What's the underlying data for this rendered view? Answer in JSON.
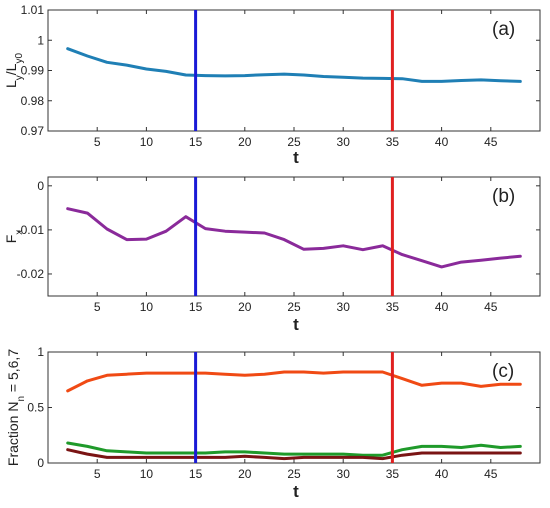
{
  "chart_data": [
    {
      "type": "line",
      "panel_label": "(a)",
      "xlabel": "t",
      "ylabel": {
        "main": "L",
        "sub1": "y",
        "mid": "/L",
        "sub2": "y0"
      },
      "xlim": [
        0,
        50
      ],
      "ylim": [
        0.97,
        1.01
      ],
      "x_ticks": [
        5,
        10,
        15,
        20,
        25,
        30,
        35,
        40,
        45
      ],
      "y_ticks": [
        {
          "value": 0.97,
          "label": "0.97"
        },
        {
          "value": 0.98,
          "label": "0.98"
        },
        {
          "value": 0.99,
          "label": "0.99"
        },
        {
          "value": 1.0,
          "label": "1"
        },
        {
          "value": 1.01,
          "label": "1.01"
        }
      ],
      "vlines": [
        {
          "x": 15,
          "color": "#1a1ad6"
        },
        {
          "x": 35,
          "color": "#e02020"
        }
      ],
      "series": [
        {
          "color": "#1f7fb5",
          "x": [
            2,
            4,
            6,
            8,
            10,
            12,
            14,
            16,
            18,
            20,
            22,
            24,
            26,
            28,
            30,
            32,
            34,
            36,
            38,
            40,
            42,
            44,
            46,
            48
          ],
          "y": [
            0.9972,
            0.9948,
            0.9927,
            0.9918,
            0.9905,
            0.9897,
            0.9885,
            0.9883,
            0.9882,
            0.9883,
            0.9886,
            0.9888,
            0.9885,
            0.988,
            0.9878,
            0.9875,
            0.9874,
            0.9873,
            0.9864,
            0.9864,
            0.9867,
            0.9869,
            0.9866,
            0.9864
          ]
        }
      ]
    },
    {
      "type": "line",
      "panel_label": "(b)",
      "xlabel": "t",
      "ylabel": {
        "main": "F",
        "sub1": "x"
      },
      "xlim": [
        0,
        50
      ],
      "ylim": [
        -0.025,
        0.002
      ],
      "x_ticks": [
        5,
        10,
        15,
        20,
        25,
        30,
        35,
        40,
        45
      ],
      "y_ticks": [
        {
          "value": 0,
          "label": "0"
        },
        {
          "value": -0.01,
          "label": "-0.01"
        },
        {
          "value": -0.02,
          "label": "-0.02"
        }
      ],
      "vlines": [
        {
          "x": 15,
          "color": "#1a1ad6"
        },
        {
          "x": 35,
          "color": "#e02020"
        }
      ],
      "series": [
        {
          "color": "#8a2a9a",
          "x": [
            2,
            4,
            6,
            8,
            10,
            12,
            14,
            16,
            18,
            20,
            22,
            24,
            26,
            28,
            30,
            32,
            34,
            36,
            38,
            40,
            42,
            44,
            46,
            48
          ],
          "y": [
            -0.0052,
            -0.0062,
            -0.0098,
            -0.0122,
            -0.0121,
            -0.0103,
            -0.007,
            -0.0097,
            -0.0103,
            -0.0105,
            -0.0107,
            -0.0122,
            -0.0144,
            -0.0142,
            -0.0136,
            -0.0145,
            -0.0136,
            -0.0156,
            -0.017,
            -0.0184,
            -0.0173,
            -0.0169,
            -0.0164,
            -0.016
          ]
        }
      ]
    },
    {
      "type": "line",
      "panel_label": "(c)",
      "xlabel": "t",
      "ylabel": {
        "main": "Fraction N",
        "sub1": "n",
        "mid": " = 5,6,7"
      },
      "xlim": [
        0,
        50
      ],
      "ylim": [
        0,
        1
      ],
      "x_ticks": [
        5,
        10,
        15,
        20,
        25,
        30,
        35,
        40,
        45
      ],
      "y_ticks": [
        {
          "value": 0,
          "label": "0"
        },
        {
          "value": 0.5,
          "label": "0.5"
        },
        {
          "value": 1,
          "label": "1"
        }
      ],
      "vlines": [
        {
          "x": 15,
          "color": "#1a1ad6"
        },
        {
          "x": 35,
          "color": "#e02020"
        }
      ],
      "series": [
        {
          "color": "#f04a14",
          "x": [
            2,
            4,
            6,
            8,
            10,
            12,
            14,
            16,
            18,
            20,
            22,
            24,
            26,
            28,
            30,
            32,
            34,
            36,
            38,
            40,
            42,
            44,
            46,
            48
          ],
          "y": [
            0.65,
            0.74,
            0.79,
            0.8,
            0.81,
            0.81,
            0.81,
            0.81,
            0.8,
            0.79,
            0.8,
            0.82,
            0.82,
            0.81,
            0.82,
            0.82,
            0.82,
            0.76,
            0.7,
            0.72,
            0.72,
            0.69,
            0.71,
            0.71
          ]
        },
        {
          "color": "#1f9a2a",
          "x": [
            2,
            4,
            6,
            8,
            10,
            12,
            14,
            16,
            18,
            20,
            22,
            24,
            26,
            28,
            30,
            32,
            34,
            36,
            38,
            40,
            42,
            44,
            46,
            48
          ],
          "y": [
            0.18,
            0.15,
            0.11,
            0.1,
            0.09,
            0.09,
            0.09,
            0.09,
            0.1,
            0.1,
            0.09,
            0.08,
            0.08,
            0.08,
            0.08,
            0.07,
            0.07,
            0.12,
            0.15,
            0.15,
            0.14,
            0.16,
            0.14,
            0.15
          ]
        },
        {
          "color": "#7a1414",
          "x": [
            2,
            4,
            6,
            8,
            10,
            12,
            14,
            16,
            18,
            20,
            22,
            24,
            26,
            28,
            30,
            32,
            34,
            36,
            38,
            40,
            42,
            44,
            46,
            48
          ],
          "y": [
            0.12,
            0.08,
            0.05,
            0.05,
            0.05,
            0.05,
            0.05,
            0.05,
            0.05,
            0.06,
            0.05,
            0.04,
            0.05,
            0.05,
            0.05,
            0.05,
            0.04,
            0.07,
            0.09,
            0.09,
            0.09,
            0.09,
            0.09,
            0.09
          ]
        }
      ]
    }
  ]
}
